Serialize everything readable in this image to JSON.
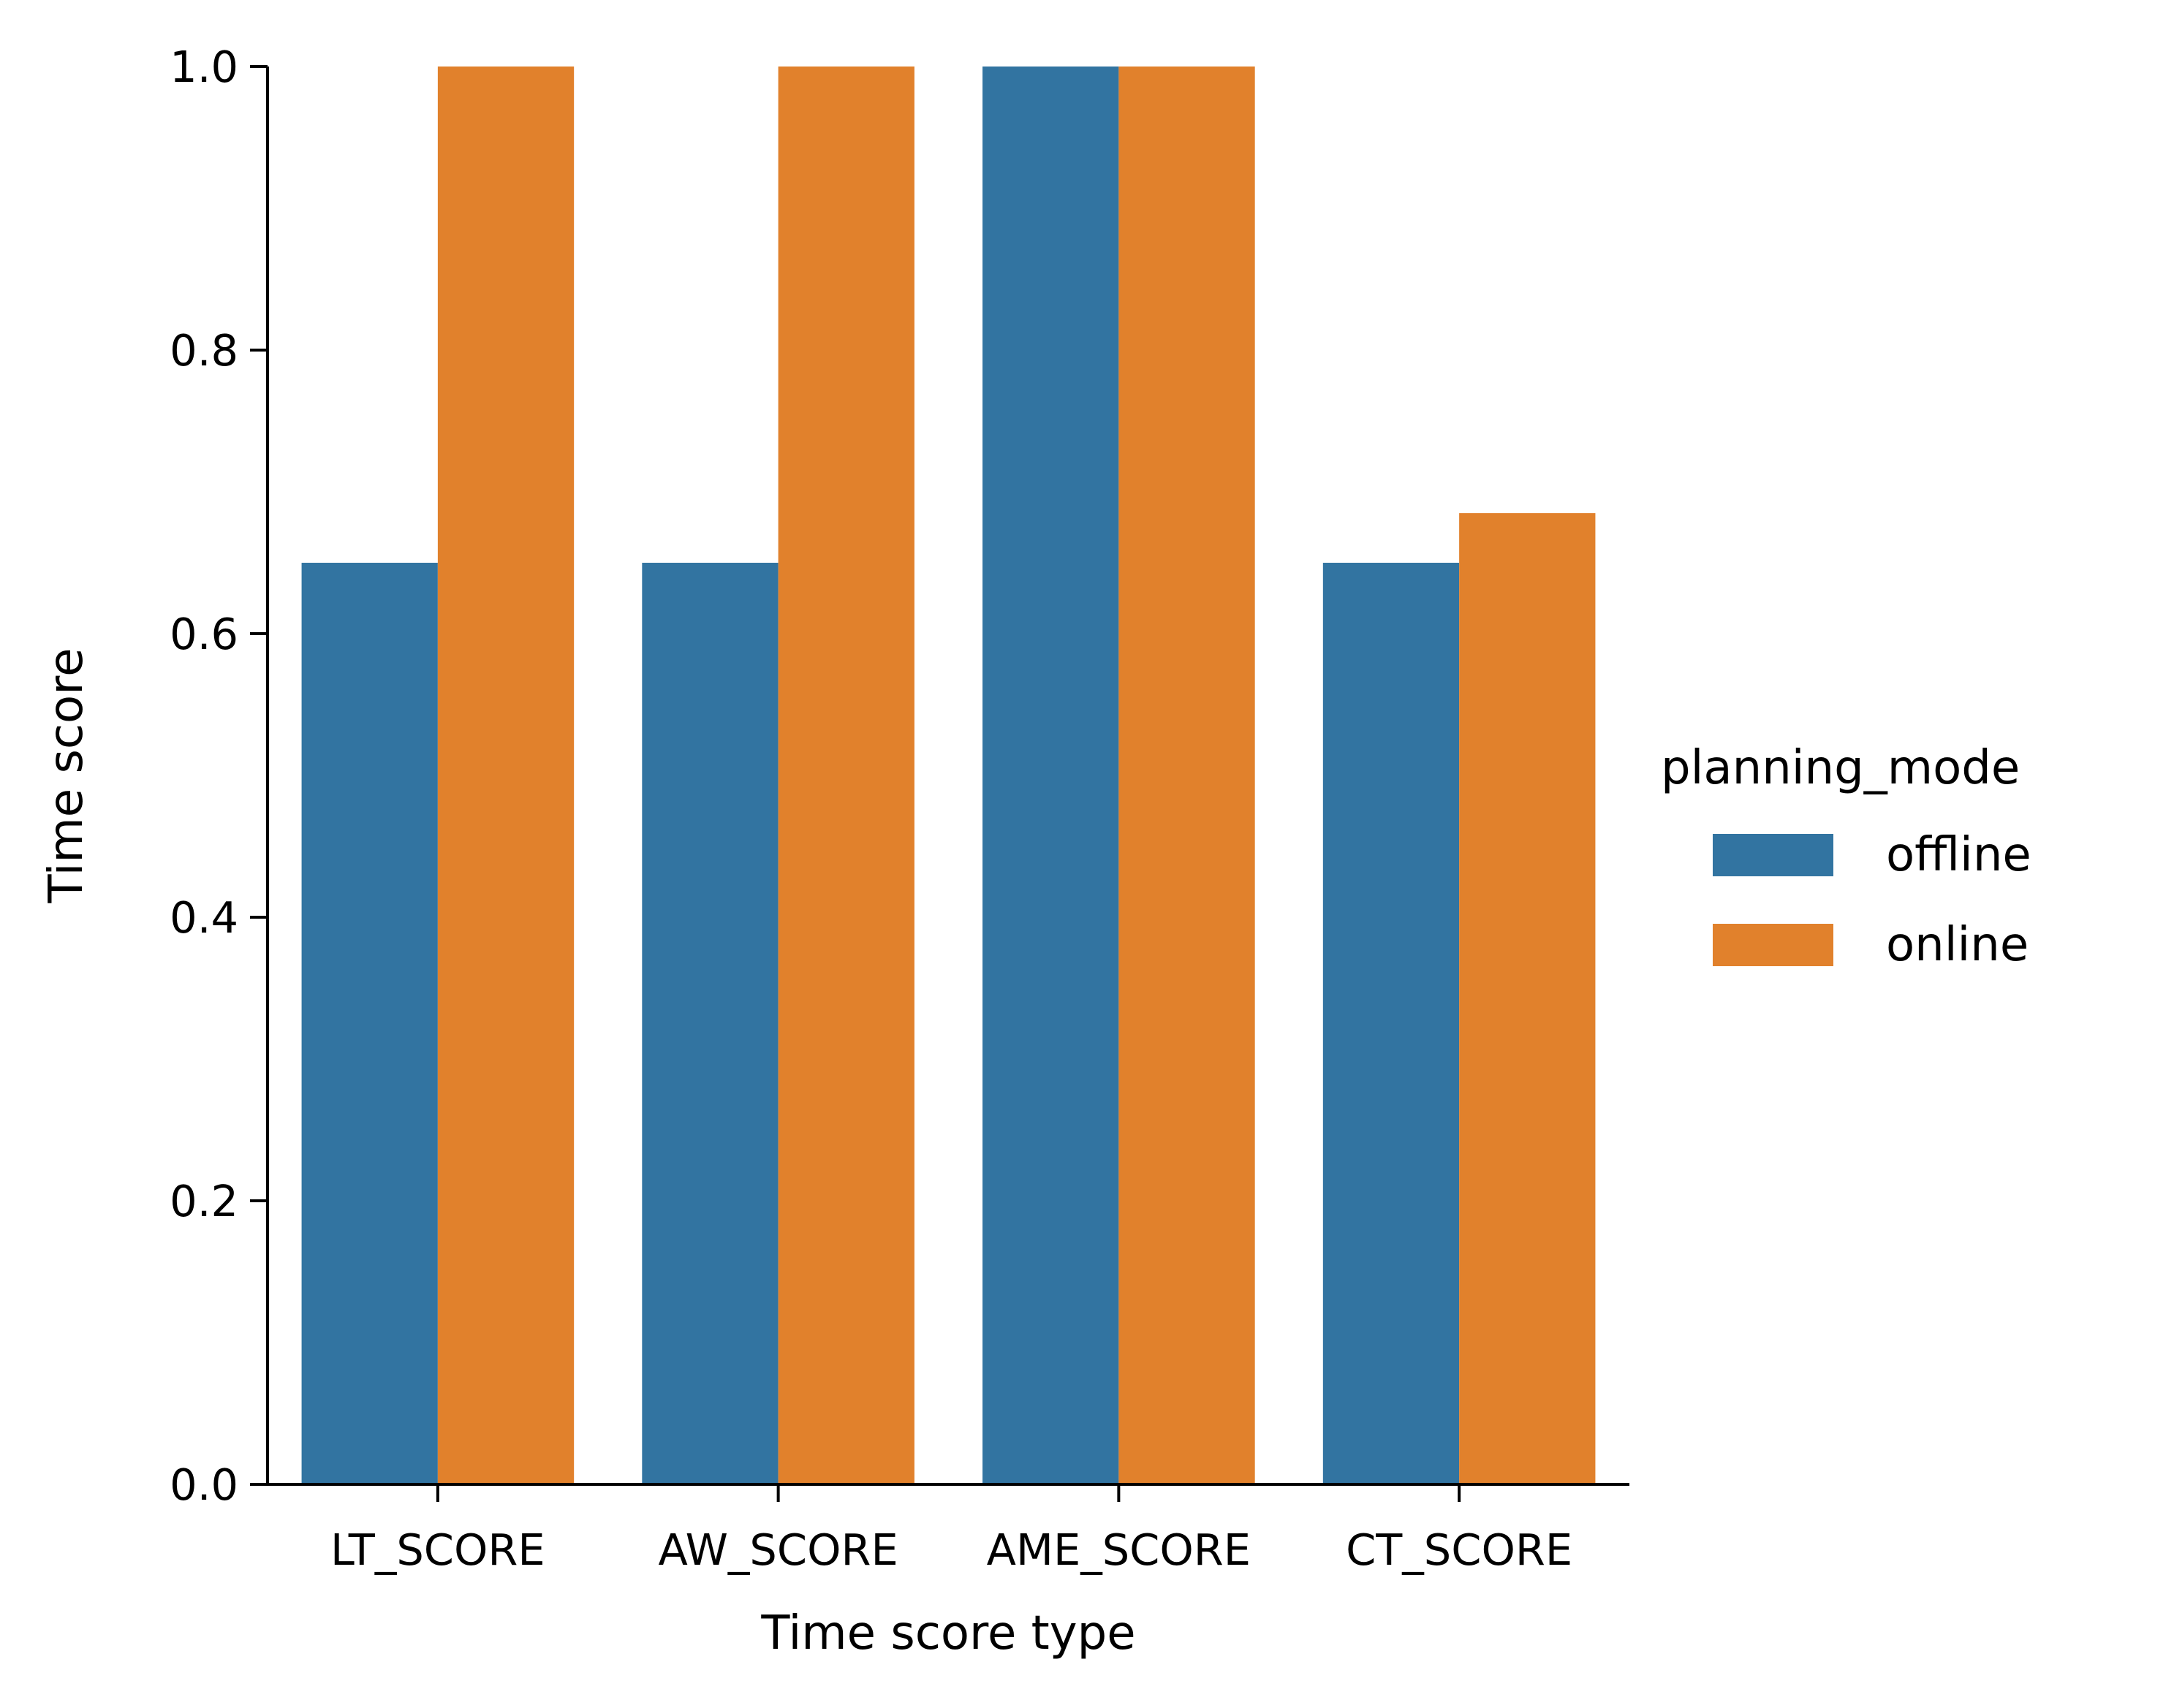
{
  "chart_data": {
    "type": "bar",
    "categories": [
      "LT_SCORE",
      "AW_SCORE",
      "AME_SCORE",
      "CT_SCORE"
    ],
    "series": [
      {
        "name": "offline",
        "color": "#3274a1",
        "values": [
          0.65,
          0.65,
          1.0,
          0.65
        ]
      },
      {
        "name": "online",
        "color": "#e1812c",
        "values": [
          1.0,
          1.0,
          1.0,
          0.685
        ]
      }
    ],
    "xlabel": "Time score type",
    "ylabel": "Time score",
    "ylim": [
      0.0,
      1.0
    ],
    "yticks": [
      "0.0",
      "0.2",
      "0.4",
      "0.6",
      "0.8",
      "1.0"
    ],
    "legend": {
      "title": "planning_mode",
      "placement": "right"
    },
    "grid": false
  }
}
